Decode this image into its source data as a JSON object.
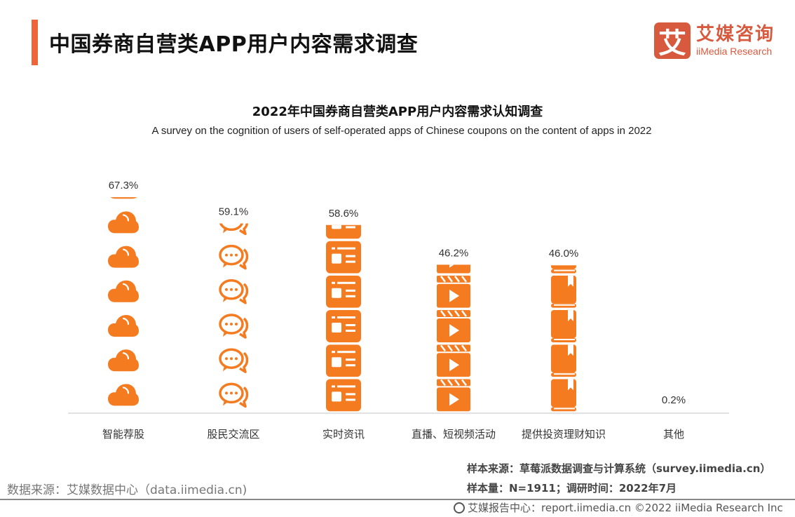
{
  "header": {
    "title": "中国券商自营类APP用户内容需求调查",
    "logo_mark": "艾",
    "logo_cn": "艾媒咨询",
    "logo_en": "iiMedia Research"
  },
  "colors": {
    "accent": "#f0643a",
    "icon": "#f47b20",
    "logo": "#d85a3e"
  },
  "chart_data": {
    "type": "bar",
    "style": "pictograph",
    "title": "2022年中国券商自营类APP用户内容需求认知调查",
    "subtitle": "A survey on the cognition of users of self-operated apps of Chinese coupons on the content of apps in 2022",
    "categories": [
      "智能荐股",
      "股民交流区",
      "实时资讯",
      "直播、短视频活动",
      "提供投资理财知识",
      "其他"
    ],
    "values": [
      67.3,
      59.1,
      58.6,
      46.2,
      46.0,
      0.2
    ],
    "labels": [
      "67.3%",
      "59.1%",
      "58.6%",
      "46.2%",
      "46.0%",
      "0.2%"
    ],
    "icons": [
      "cloud-icon",
      "chat-bubbles-icon",
      "news-icon",
      "video-clapper-icon",
      "book-icon",
      "none"
    ],
    "unit": "%",
    "xlabel": "",
    "ylabel": "",
    "ylim": [
      0,
      70
    ],
    "grid": false,
    "legend": "none"
  },
  "footer": {
    "data_source": "数据来源：艾媒数据中心（data.iimedia.cn)",
    "sample_source": "样本来源：草莓派数据调查与计算系统（survey.iimedia.cn）",
    "sample_size": "样本量：N=1911；调研时间：2022年7月",
    "report_center": "艾媒报告中心：report.iimedia.cn   ©2022  iiMedia Research  Inc"
  }
}
